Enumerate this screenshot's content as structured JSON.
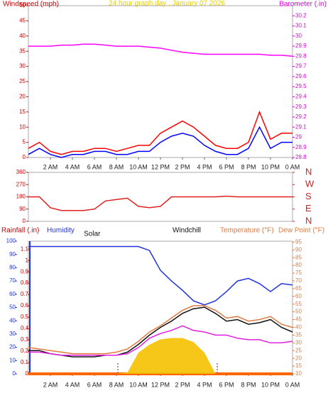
{
  "chart_data": [
    {
      "type": "line",
      "title": "24 hour graph day , January 07 2026",
      "ylabel": "Windspeed (mph)",
      "y2label": "Barometer (.in)",
      "x": [
        0,
        1,
        2,
        3,
        4,
        5,
        6,
        7,
        8,
        9,
        10,
        11,
        12,
        13,
        14,
        15,
        16,
        17,
        18,
        19,
        20,
        21,
        22,
        23,
        24
      ],
      "xlim": [
        0,
        24
      ],
      "xticks": [
        {
          "value": 2,
          "label": "2 AM"
        },
        {
          "value": 4,
          "label": "4 AM"
        },
        {
          "value": 6,
          "label": "6 AM"
        },
        {
          "value": 8,
          "label": "8 AM"
        },
        {
          "value": 10,
          "label": "10 AM"
        },
        {
          "value": 12,
          "label": "12 PM"
        },
        {
          "value": 14,
          "label": "2 PM"
        },
        {
          "value": 16,
          "label": "4 PM"
        },
        {
          "value": 18,
          "label": "6 PM"
        },
        {
          "value": 20,
          "label": "8 PM"
        },
        {
          "value": 22,
          "label": "10 PM"
        },
        {
          "value": 24,
          "label": "0 AM"
        }
      ],
      "ylim": [
        0,
        50
      ],
      "yticks": [
        0,
        5,
        10,
        15,
        20,
        25,
        30,
        35,
        40,
        45,
        50
      ],
      "y2lim": [
        28.8,
        30.3
      ],
      "y2ticks": [
        28.8,
        28.9,
        29,
        29.1,
        29.2,
        29.3,
        29.4,
        29.5,
        29.6,
        29.7,
        29.8,
        29.9,
        30,
        30.1,
        30.2
      ],
      "series": [
        {
          "color": "#ff0000",
          "values": [
            3,
            5,
            2,
            1,
            2,
            2,
            3,
            3,
            2,
            3,
            4,
            4,
            8,
            10,
            12,
            10,
            7,
            4,
            3,
            3,
            5,
            15,
            6,
            8,
            8
          ]
        },
        {
          "color": "#0000ff",
          "values": [
            1,
            3,
            1,
            0,
            1,
            1,
            2,
            2,
            1,
            1,
            2,
            2,
            5,
            7,
            8,
            7,
            4,
            2,
            1,
            1,
            3,
            10,
            3,
            5,
            5
          ]
        },
        {
          "color": "#ff00ff",
          "axis": "y2",
          "values": [
            29.9,
            29.9,
            29.9,
            29.91,
            29.91,
            29.92,
            29.92,
            29.91,
            29.9,
            29.9,
            29.9,
            29.89,
            29.88,
            29.86,
            29.84,
            29.83,
            29.82,
            29.82,
            29.82,
            29.82,
            29.82,
            29.82,
            29.81,
            29.81,
            29.8
          ]
        }
      ]
    },
    {
      "type": "line",
      "x": [
        0,
        1,
        2,
        3,
        4,
        5,
        6,
        7,
        8,
        9,
        10,
        11,
        12,
        13,
        14,
        15,
        16,
        17,
        18,
        19,
        20,
        21,
        22,
        23,
        24
      ],
      "xlim": [
        0,
        24
      ],
      "ylim": [
        0,
        360
      ],
      "yticks": [
        0,
        90,
        180,
        270,
        360
      ],
      "y2lim": [
        0,
        360
      ],
      "y2ticks": [
        {
          "value": 0,
          "label": "N"
        },
        {
          "value": 90,
          "label": "E"
        },
        {
          "value": 180,
          "label": "S"
        },
        {
          "value": 270,
          "label": "W"
        },
        {
          "value": 360,
          "label": "N"
        }
      ],
      "series": [
        {
          "color": "#e02020",
          "values": [
            180,
            180,
            100,
            80,
            80,
            80,
            90,
            150,
            160,
            170,
            110,
            100,
            110,
            180,
            180,
            180,
            180,
            180,
            185,
            180,
            180,
            180,
            180,
            180,
            180
          ]
        }
      ]
    },
    {
      "type": "line",
      "x": [
        0,
        1,
        2,
        3,
        4,
        5,
        6,
        7,
        8,
        9,
        10,
        11,
        12,
        13,
        14,
        15,
        16,
        17,
        18,
        19,
        20,
        21,
        22,
        23,
        24
      ],
      "xlim": [
        0,
        24
      ],
      "xticks": [
        {
          "value": 2,
          "label": "2 AM"
        },
        {
          "value": 4,
          "label": "4 AM"
        },
        {
          "value": 6,
          "label": "6 AM"
        },
        {
          "value": 8,
          "label": "8 AM"
        },
        {
          "value": 10,
          "label": "10 AM"
        },
        {
          "value": 12,
          "label": "12 PM"
        },
        {
          "value": 14,
          "label": "2 PM"
        },
        {
          "value": 16,
          "label": "4 PM"
        },
        {
          "value": 18,
          "label": "6 PM"
        },
        {
          "value": 20,
          "label": "8 PM"
        },
        {
          "value": 22,
          "label": "10 PM"
        },
        {
          "value": 24,
          "label": "0 AM"
        }
      ],
      "ylim": [
        0,
        100
      ],
      "yticks": [
        0,
        10,
        20,
        30,
        40,
        50,
        60,
        70,
        80,
        90,
        100
      ],
      "y2lim": [
        10,
        95.6
      ],
      "y2ticks": [
        10,
        15,
        20,
        25,
        30,
        35,
        40,
        45,
        50,
        55,
        60,
        65,
        70,
        75,
        80,
        85,
        90,
        95
      ],
      "y3lim": [
        0,
        1.17
      ],
      "y3ticks": [
        0,
        0.1,
        0.2,
        0.3,
        0.4,
        0.5,
        0.6,
        0.7,
        0.8,
        0.9,
        1,
        1.1
      ],
      "series": [
        {
          "name": "Rainfall (.in)",
          "color": "#ff6600",
          "axis": "y3",
          "values": [
            0,
            0,
            0,
            0,
            0,
            0,
            0,
            0,
            0,
            0,
            0,
            0,
            0,
            0,
            0,
            0,
            0,
            0,
            0,
            0,
            0,
            0,
            0,
            0,
            0
          ]
        },
        {
          "name": "Humidity",
          "color": "#2233dd",
          "values": [
            96,
            96,
            96,
            96,
            96,
            96,
            96,
            96,
            96,
            96,
            96,
            93,
            78,
            70,
            63,
            55,
            52,
            55,
            62,
            70,
            72,
            68,
            62,
            68,
            67
          ]
        },
        {
          "name": "Solar",
          "color": "#f5c000",
          "fill": true,
          "values": [
            0,
            0,
            0,
            0,
            0,
            0,
            0,
            0,
            0,
            1,
            16,
            22,
            26,
            27,
            27,
            24,
            16,
            0,
            0,
            0,
            0,
            0,
            0,
            0,
            0
          ]
        },
        {
          "name": "Windchill",
          "color": "#111111",
          "axis": "y2",
          "values": [
            25,
            25,
            23,
            22,
            21,
            21,
            21,
            22,
            22,
            24,
            29,
            35,
            40,
            44,
            49,
            52,
            53,
            49,
            44,
            45,
            42,
            43,
            45,
            40,
            37
          ]
        },
        {
          "name": "Temperature (°F)",
          "color": "#e07a40",
          "axis": "y2",
          "values": [
            27,
            26,
            25,
            24,
            23,
            23,
            23,
            23,
            24,
            26,
            31,
            37,
            41,
            46,
            51,
            54,
            54,
            51,
            46,
            47,
            44,
            45,
            47,
            42,
            40
          ]
        },
        {
          "name": "Dew Point (°F)",
          "color": "#e020e0",
          "axis": "y2",
          "values": [
            24,
            24,
            23,
            22,
            22,
            22,
            22,
            22,
            22,
            23,
            27,
            33,
            36,
            38,
            41,
            38,
            37,
            35,
            35,
            33,
            32,
            32,
            30,
            30,
            31
          ]
        }
      ]
    }
  ]
}
